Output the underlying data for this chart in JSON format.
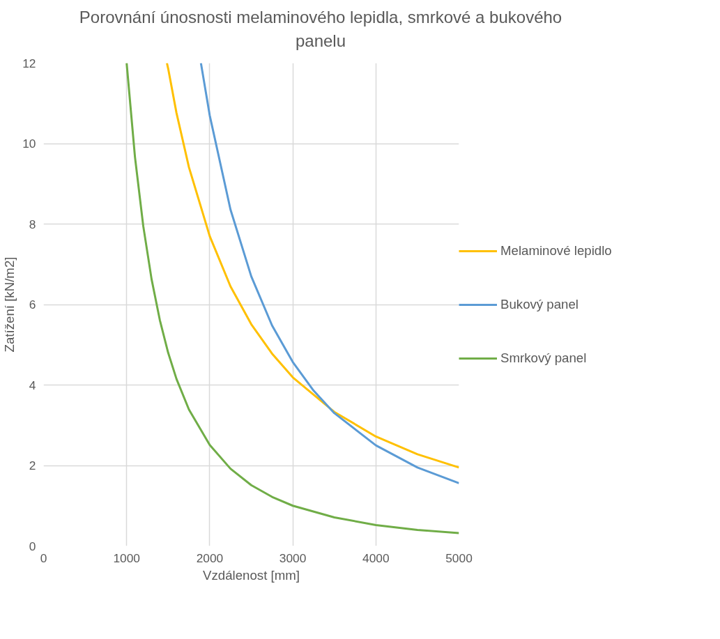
{
  "chart_data": {
    "type": "line",
    "title": "Porovnání únosnosti melaminového lepidla, smrkové a bukového panelu",
    "xlabel": "Vzdálenost [mm]",
    "ylabel": "Zatížení [kN/m2]",
    "xlim": [
      0,
      5000
    ],
    "xticks": [
      0,
      1000,
      2000,
      3000,
      4000,
      5000
    ],
    "ylim": [
      0,
      12
    ],
    "yticks": [
      0,
      2,
      4,
      6,
      8,
      10,
      12
    ],
    "grid": true,
    "legend": "right",
    "marker": "none",
    "line_style": "solid",
    "series": [
      {
        "name": "Melaminové lepidlo",
        "color": "#ffc000",
        "x": [
          1485,
          1500,
          1600,
          1750,
          2000,
          2250,
          2500,
          2750,
          3000,
          3500,
          4000,
          4500,
          5000
        ],
        "values": [
          12.0,
          11.86,
          10.76,
          9.41,
          7.7,
          6.45,
          5.51,
          4.78,
          4.19,
          3.33,
          2.72,
          2.28,
          1.95
        ]
      },
      {
        "name": "Bukový panel",
        "color": "#5b9bd5",
        "x": [
          1894,
          2000,
          2250,
          2500,
          2750,
          3000,
          3250,
          3500,
          4000,
          4500,
          5000
        ],
        "values": [
          12.0,
          10.7,
          8.36,
          6.7,
          5.48,
          4.57,
          3.86,
          3.3,
          2.5,
          1.95,
          1.56
        ]
      },
      {
        "name": "Smrkový panel",
        "color": "#70ad47",
        "x": [
          1000,
          1100,
          1200,
          1300,
          1400,
          1500,
          1600,
          1750,
          2000,
          2250,
          2500,
          2750,
          3000,
          3500,
          4000,
          4500,
          5000
        ],
        "values": [
          12.0,
          9.67,
          7.95,
          6.63,
          5.61,
          4.8,
          4.15,
          3.39,
          2.51,
          1.92,
          1.51,
          1.22,
          1.0,
          0.71,
          0.52,
          0.4,
          0.32
        ]
      }
    ]
  }
}
